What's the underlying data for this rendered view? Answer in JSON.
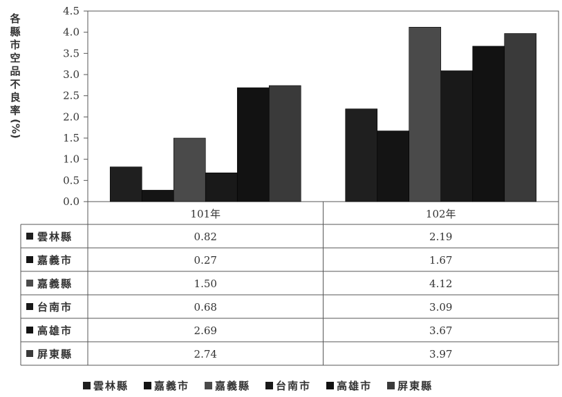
{
  "chart_data": {
    "type": "bar",
    "categories": [
      "101年",
      "102年"
    ],
    "series": [
      {
        "name": "雲林縣",
        "values": [
          0.82,
          2.19
        ],
        "color": "#1f1f1f"
      },
      {
        "name": "嘉義市",
        "values": [
          0.27,
          1.67
        ],
        "color": "#141414"
      },
      {
        "name": "嘉義縣",
        "values": [
          1.5,
          4.12
        ],
        "color": "#4a4a4a"
      },
      {
        "name": "台南市",
        "values": [
          0.68,
          3.09
        ],
        "color": "#191919"
      },
      {
        "name": "高雄市",
        "values": [
          2.69,
          3.67
        ],
        "color": "#121212"
      },
      {
        "name": "屏東縣",
        "values": [
          2.74,
          3.97
        ],
        "color": "#3a3a3a"
      }
    ],
    "table_values": [
      [
        "0.82",
        "2.19"
      ],
      [
        "0.27",
        "1.67"
      ],
      [
        "1.50",
        "4.12"
      ],
      [
        "0.68",
        "3.09"
      ],
      [
        "2.69",
        "3.67"
      ],
      [
        "2.74",
        "3.97"
      ]
    ],
    "ylabel": "各縣市空品不良率(%)",
    "ylim": [
      0,
      4.5
    ],
    "yticks": [
      "0.0",
      "0.5",
      "1.0",
      "1.5",
      "2.0",
      "2.5",
      "3.0",
      "3.5",
      "4.0",
      "4.5"
    ],
    "grid": false,
    "legend": "bottom"
  }
}
